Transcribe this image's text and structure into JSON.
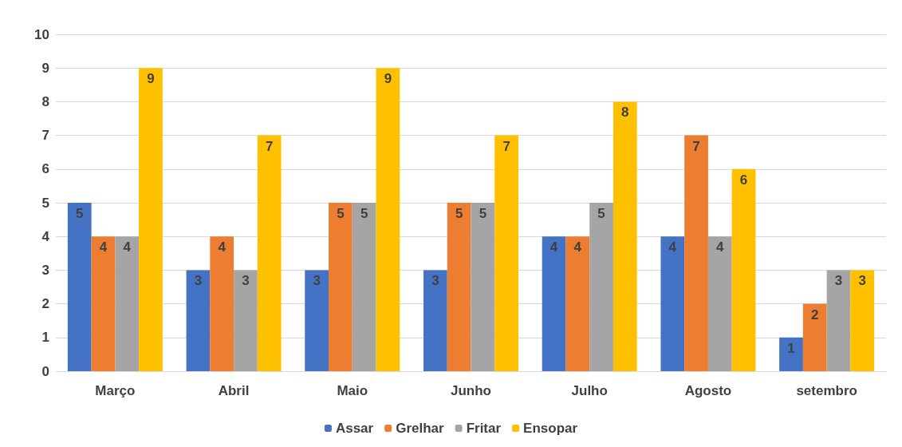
{
  "chart_data": {
    "type": "bar",
    "categories": [
      "Março",
      "Abril",
      "Maio",
      "Junho",
      "Julho",
      "Agosto",
      "setembro"
    ],
    "series": [
      {
        "name": "Assar",
        "color": "#4472c4",
        "values": [
          5,
          3,
          3,
          3,
          4,
          4,
          1
        ]
      },
      {
        "name": "Grelhar",
        "color": "#ed7d31",
        "values": [
          4,
          4,
          5,
          5,
          4,
          7,
          2
        ]
      },
      {
        "name": "Fritar",
        "color": "#a5a5a5",
        "values": [
          4,
          3,
          5,
          5,
          5,
          4,
          3
        ]
      },
      {
        "name": "Ensopar",
        "color": "#ffc000",
        "values": [
          9,
          7,
          9,
          7,
          8,
          6,
          3
        ]
      }
    ],
    "ylim": [
      0,
      10
    ],
    "yticks": [
      0,
      1,
      2,
      3,
      4,
      5,
      6,
      7,
      8,
      9,
      10
    ],
    "grid": "y",
    "legend": "bottom",
    "data_labels": true
  }
}
